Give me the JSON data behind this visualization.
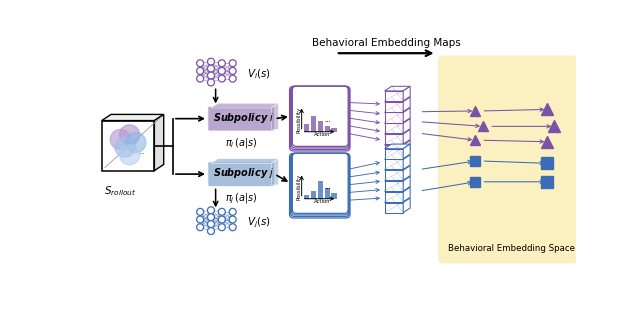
{
  "title": "Behavioral Embedding Maps",
  "behavioral_space_label": "Behavioral Embedding Space",
  "s_rollout_label": "$S_{rollout}$",
  "subpolicy_i_label": "Subpolicy $i$",
  "subpolicy_j_label": "Subpolicy $j$",
  "vi_label": "$V_i(s)$",
  "vj_label": "$V_j(s)$",
  "pi_i_label": "$\\pi_i\\,(a|s)$",
  "pi_j_label": "$\\pi_j\\,(a|s)$",
  "possibility_label": "Possibility",
  "action_label": "Action",
  "purple_color": "#7B52A6",
  "purple_light": "#C9AEE0",
  "purple_box": "#B09AC8",
  "blue_color": "#3B6CB5",
  "blue_light": "#A8C0E0",
  "blue_box": "#9BB5D6",
  "bg_yellow": "#FBF0C0",
  "arrow_color": "#111111"
}
